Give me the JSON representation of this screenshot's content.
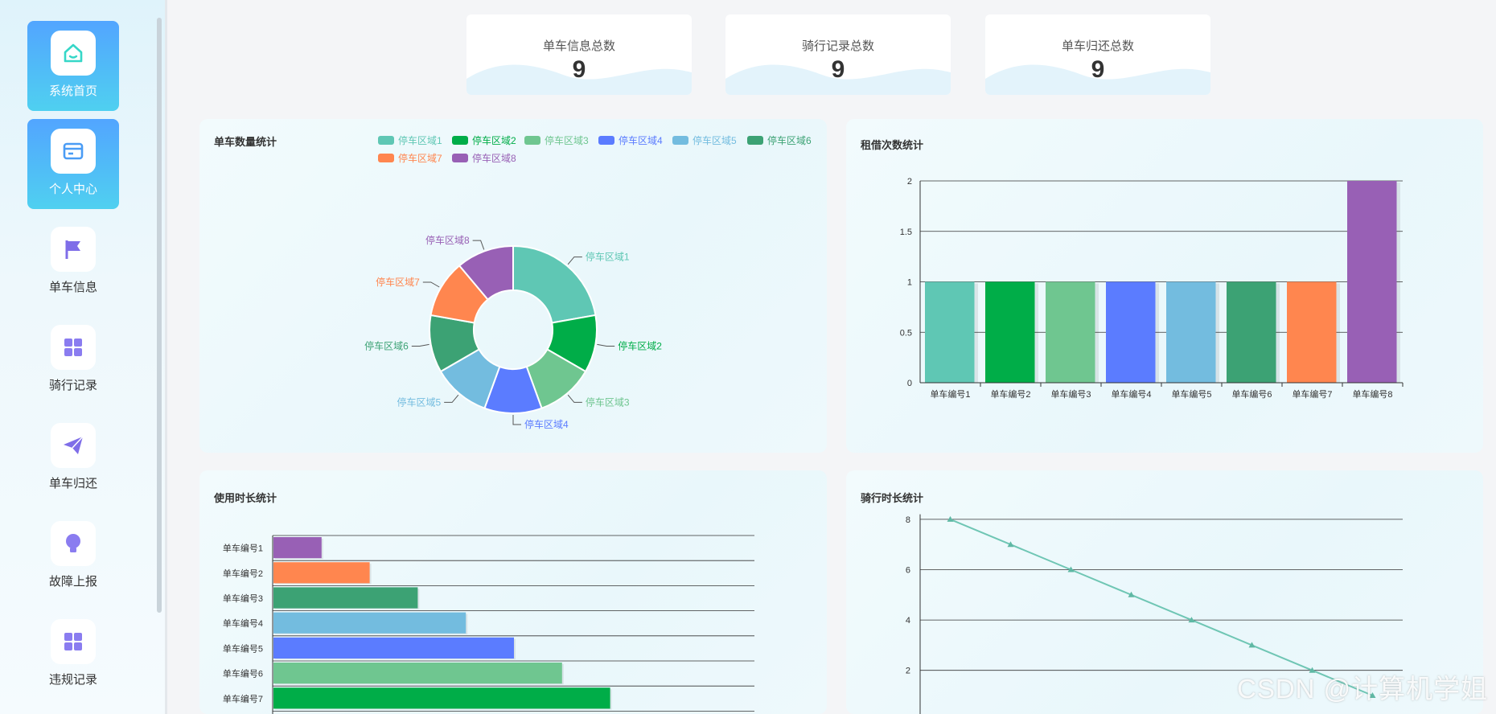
{
  "nav": [
    {
      "label": "系统首页",
      "icon": "home-icon",
      "active": true
    },
    {
      "label": "个人中心",
      "icon": "card-icon",
      "active": true
    },
    {
      "label": "单车信息",
      "icon": "flag-icon",
      "active": false
    },
    {
      "label": "骑行记录",
      "icon": "grid-icon",
      "active": false
    },
    {
      "label": "单车归还",
      "icon": "paper-plane-icon",
      "active": false
    },
    {
      "label": "故障上报",
      "icon": "bulb-icon",
      "active": false
    },
    {
      "label": "违规记录",
      "icon": "grid-icon",
      "active": false
    }
  ],
  "stats": [
    {
      "label": "单车信息总数",
      "value": "9"
    },
    {
      "label": "骑行记录总数",
      "value": "9"
    },
    {
      "label": "单车归还总数",
      "value": "9"
    }
  ],
  "colors": [
    "#5fc7b4",
    "#00ad48",
    "#6fc690",
    "#5b7cff",
    "#73bcdf",
    "#3ca274",
    "#ff864f",
    "#9860b5"
  ],
  "panels": {
    "pie_title": "单车数量统计",
    "bar_title": "租借次数统计",
    "hbar_title": "使用时长统计",
    "line_title": "骑行时长统计"
  },
  "chart_data": [
    {
      "type": "pie",
      "title": "单车数量统计",
      "donut": true,
      "legend": "top-right",
      "labels": [
        "停车区域1",
        "停车区域2",
        "停车区域3",
        "停车区域4",
        "停车区域5",
        "停车区域6",
        "停车区域7",
        "停车区域8"
      ],
      "values": [
        2,
        1,
        1,
        1,
        1,
        1,
        1,
        1
      ]
    },
    {
      "type": "bar",
      "title": "租借次数统计",
      "categories": [
        "单车编号1",
        "单车编号2",
        "单车编号3",
        "单车编号4",
        "单车编号5",
        "单车编号6",
        "单车编号7",
        "单车编号8"
      ],
      "values": [
        1,
        1,
        1,
        1,
        1,
        1,
        1,
        2
      ],
      "ylim": [
        0,
        2
      ],
      "yticks": [
        "0",
        "0.5",
        "1",
        "1.5",
        "2"
      ],
      "grid": true
    },
    {
      "type": "bar",
      "orientation": "horizontal",
      "title": "使用时长统计",
      "categories": [
        "单车编号1",
        "单车编号2",
        "单车编号3",
        "单车编号4",
        "单车编号5",
        "单车编号6",
        "单车编号7"
      ],
      "values": [
        1,
        2,
        3,
        4,
        5,
        6,
        7
      ],
      "grid": true
    },
    {
      "type": "line",
      "title": "骑行时长统计",
      "x": [
        1,
        2,
        3,
        4,
        5,
        6,
        7,
        8
      ],
      "values": [
        8,
        7,
        6,
        5,
        4,
        3,
        2,
        1
      ],
      "yticks": [
        "2",
        "4",
        "6",
        "8"
      ],
      "grid": true
    }
  ],
  "watermark": "CSDN @计算机学姐"
}
